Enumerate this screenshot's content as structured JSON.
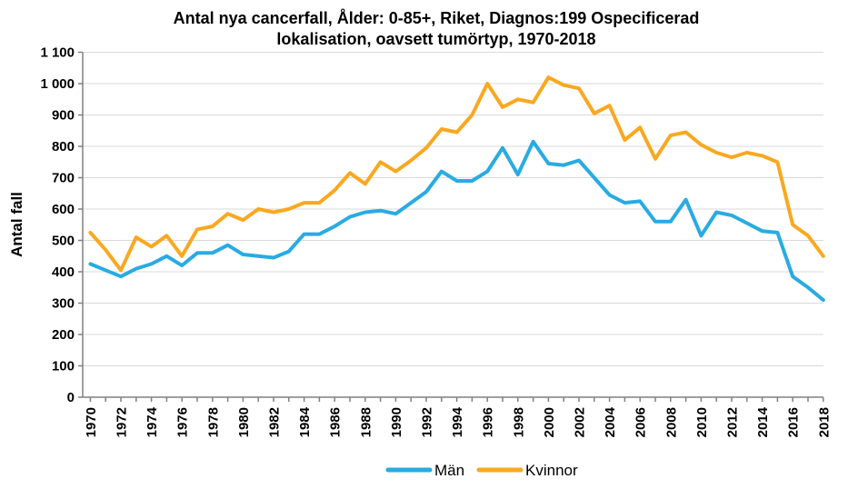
{
  "chart_data": {
    "type": "line",
    "title": "Antal nya cancerfall, Ålder: 0-85+, Riket, Diagnos:199 Ospecificerad lokalisation, oavsett tumörtyp, 1970-2018",
    "title_lines": [
      "Antal nya cancerfall, Ålder: 0-85+, Riket, Diagnos:199 Ospecificerad",
      "lokalisation, oavsett tumörtyp, 1970-2018"
    ],
    "xlabel": "",
    "ylabel": "Antal fall",
    "ylim": [
      0,
      1100
    ],
    "y_tick_step": 100,
    "y_tick_labels": [
      "0",
      "100",
      "200",
      "300",
      "400",
      "500",
      "600",
      "700",
      "800",
      "900",
      "1 000",
      "1 100"
    ],
    "x": [
      1970,
      1971,
      1972,
      1973,
      1974,
      1975,
      1976,
      1977,
      1978,
      1979,
      1980,
      1981,
      1982,
      1983,
      1984,
      1985,
      1986,
      1987,
      1988,
      1989,
      1990,
      1991,
      1992,
      1993,
      1994,
      1995,
      1996,
      1997,
      1998,
      1999,
      2000,
      2001,
      2002,
      2003,
      2004,
      2005,
      2006,
      2007,
      2008,
      2009,
      2010,
      2011,
      2012,
      2013,
      2014,
      2015,
      2016,
      2017,
      2018
    ],
    "x_label_every": 2,
    "grid": true,
    "legend_position": "bottom",
    "series": [
      {
        "name": "Män",
        "color": "#29ABE2",
        "values": [
          425,
          405,
          385,
          410,
          425,
          450,
          420,
          460,
          460,
          485,
          455,
          450,
          445,
          465,
          520,
          520,
          545,
          575,
          590,
          595,
          585,
          620,
          655,
          720,
          690,
          690,
          720,
          795,
          710,
          815,
          745,
          740,
          755,
          700,
          645,
          620,
          625,
          560,
          560,
          630,
          515,
          590,
          580,
          555,
          530,
          525,
          385,
          350,
          310
        ]
      },
      {
        "name": "Kvinnor",
        "color": "#FAA820",
        "values": [
          525,
          470,
          405,
          510,
          480,
          515,
          450,
          535,
          545,
          585,
          565,
          600,
          590,
          600,
          620,
          620,
          660,
          715,
          680,
          750,
          720,
          755,
          795,
          855,
          845,
          900,
          1000,
          925,
          950,
          940,
          1020,
          995,
          985,
          905,
          930,
          820,
          860,
          760,
          835,
          845,
          805,
          780,
          765,
          780,
          770,
          750,
          550,
          515,
          450
        ]
      }
    ]
  },
  "style_colors": {
    "gridline": "#D9D9D9",
    "axis": "#808080",
    "text": "#000000",
    "background": "#FFFFFF"
  }
}
